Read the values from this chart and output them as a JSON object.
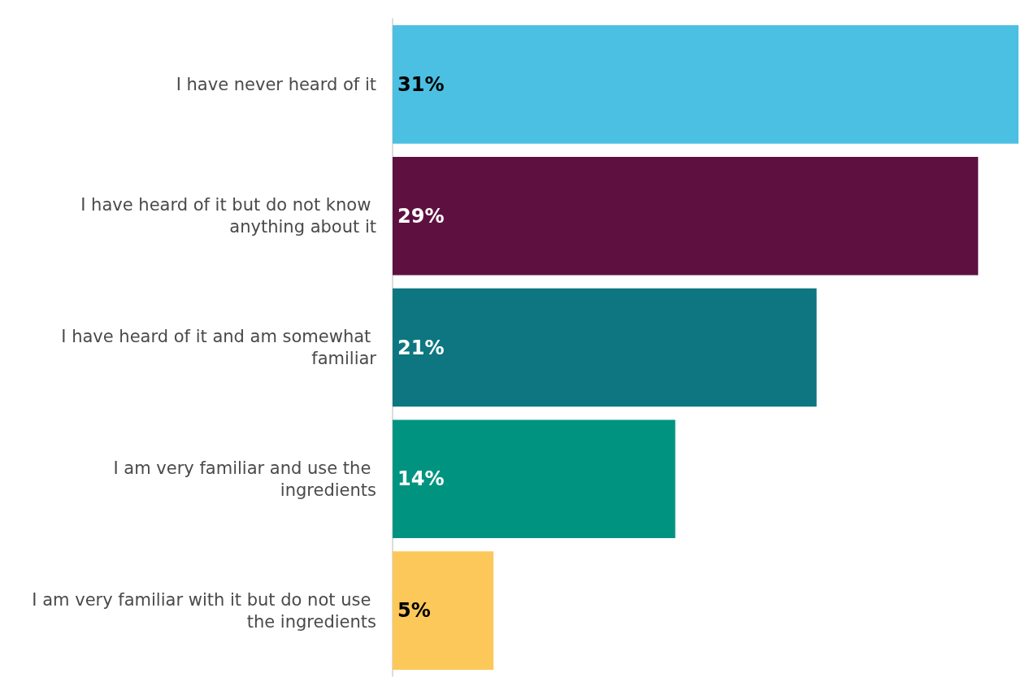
{
  "chart_data": {
    "type": "bar",
    "orientation": "horizontal",
    "categories": [
      "I have never heard of it",
      "I have heard of it but do not know anything about it",
      "I have heard of it and am somewhat familiar",
      "I am very familiar and use the ingredients",
      "I am very familiar with it but do not use the ingredients"
    ],
    "values": [
      31,
      29,
      21,
      14,
      5
    ],
    "value_labels": [
      "31%",
      "29%",
      "21%",
      "14%",
      "5%"
    ],
    "colors": [
      "#4cc0e2",
      "#5e1140",
      "#0d7680",
      "#009480",
      "#fdc85a"
    ],
    "xlim": [
      0,
      31
    ],
    "grid": false
  }
}
